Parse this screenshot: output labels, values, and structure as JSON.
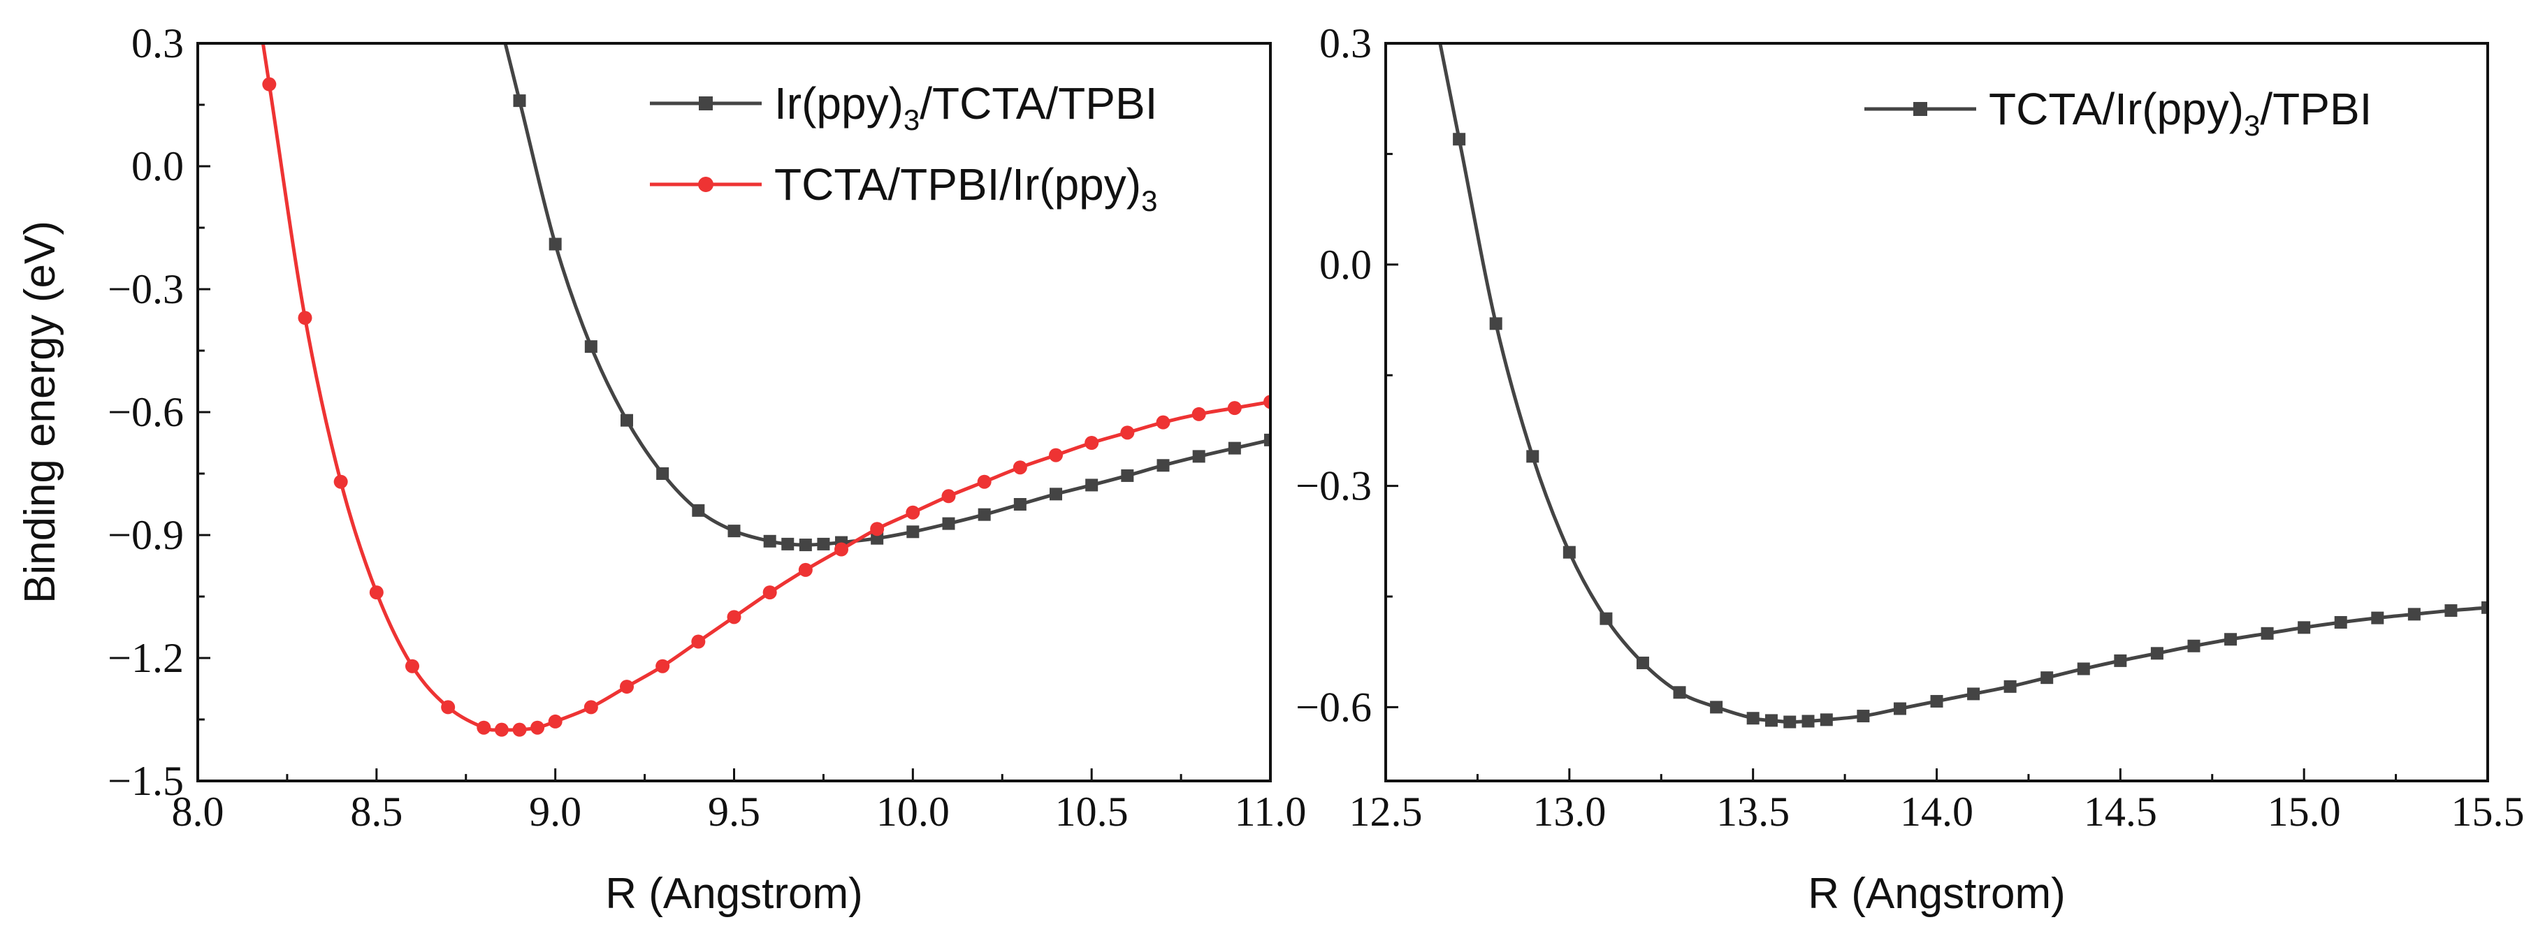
{
  "chart_data": [
    {
      "type": "line",
      "xlabel": "R (Angstrom)",
      "ylabel": "Binding energy (eV)",
      "xlim": [
        8.0,
        11.0
      ],
      "ylim": [
        -1.5,
        0.3
      ],
      "xticks": [
        "8.0",
        "8.5",
        "9.0",
        "9.5",
        "10.0",
        "10.5",
        "11.0"
      ],
      "yticks": [
        "0.3",
        "0.0",
        "−0.3",
        "−0.6",
        "−0.9",
        "−1.2",
        "−1.5"
      ],
      "legend_position": "top-right",
      "series": [
        {
          "name": "Ir(ppy)3/TCTA/TPBI",
          "legend": {
            "pre": "Ir(ppy)",
            "sub": "3",
            "post": "/TCTA/TPBI"
          },
          "color": "#444444",
          "marker": "square",
          "x": [
            8.9,
            9.0,
            9.1,
            9.2,
            9.3,
            9.4,
            9.5,
            9.6,
            9.65,
            9.7,
            9.75,
            9.8,
            9.9,
            10.0,
            10.1,
            10.2,
            10.3,
            10.4,
            10.5,
            10.6,
            10.7,
            10.8,
            10.9,
            11.0
          ],
          "y": [
            0.16,
            -0.19,
            -0.44,
            -0.62,
            -0.75,
            -0.84,
            -0.89,
            -0.915,
            -0.922,
            -0.924,
            -0.922,
            -0.918,
            -0.908,
            -0.892,
            -0.872,
            -0.85,
            -0.825,
            -0.8,
            -0.778,
            -0.755,
            -0.73,
            -0.708,
            -0.688,
            -0.668
          ]
        },
        {
          "name": "TCTA/TPBI/Ir(ppy)3",
          "legend": {
            "pre": "TCTA/TPBI/Ir(ppy)",
            "sub": "3",
            "post": ""
          },
          "color": "#ee3333",
          "marker": "circle",
          "x": [
            8.2,
            8.3,
            8.4,
            8.5,
            8.6,
            8.7,
            8.8,
            8.85,
            8.9,
            8.95,
            9.0,
            9.1,
            9.2,
            9.3,
            9.4,
            9.5,
            9.6,
            9.7,
            9.8,
            9.9,
            10.0,
            10.1,
            10.2,
            10.3,
            10.4,
            10.5,
            10.6,
            10.7,
            10.8,
            10.9,
            11.0
          ],
          "y": [
            0.2,
            -0.37,
            -0.77,
            -1.04,
            -1.22,
            -1.32,
            -1.37,
            -1.375,
            -1.375,
            -1.37,
            -1.355,
            -1.32,
            -1.27,
            -1.22,
            -1.16,
            -1.1,
            -1.04,
            -0.985,
            -0.935,
            -0.885,
            -0.845,
            -0.805,
            -0.77,
            -0.735,
            -0.705,
            -0.675,
            -0.65,
            -0.625,
            -0.605,
            -0.59,
            -0.575
          ]
        }
      ]
    },
    {
      "type": "line",
      "xlabel": "R (Angstrom)",
      "ylabel": "",
      "xlim": [
        12.5,
        15.5
      ],
      "ylim": [
        -0.7,
        0.3
      ],
      "xticks": [
        "12.5",
        "13.0",
        "13.5",
        "14.0",
        "14.5",
        "15.0",
        "15.5"
      ],
      "yticks": [
        "0.3",
        "0.0",
        "−0.3",
        "−0.6"
      ],
      "legend_position": "top-right",
      "series": [
        {
          "name": "TCTA/Ir(ppy)3/TPBI",
          "legend": {
            "pre": "TCTA/Ir(ppy)",
            "sub": "3",
            "post": "/TPBI"
          },
          "color": "#444444",
          "marker": "square",
          "x": [
            12.7,
            12.8,
            12.9,
            13.0,
            13.1,
            13.2,
            13.3,
            13.4,
            13.5,
            13.55,
            13.6,
            13.65,
            13.7,
            13.8,
            13.9,
            14.0,
            14.1,
            14.2,
            14.3,
            14.4,
            14.5,
            14.6,
            14.7,
            14.8,
            14.9,
            15.0,
            15.1,
            15.2,
            15.3,
            15.4,
            15.5
          ],
          "y": [
            0.17,
            -0.08,
            -0.26,
            -0.39,
            -0.48,
            -0.54,
            -0.58,
            -0.6,
            -0.615,
            -0.618,
            -0.62,
            -0.619,
            -0.617,
            -0.612,
            -0.602,
            -0.592,
            -0.582,
            -0.572,
            -0.56,
            -0.548,
            -0.537,
            -0.527,
            -0.517,
            -0.508,
            -0.5,
            -0.492,
            -0.485,
            -0.479,
            -0.474,
            -0.469,
            -0.465
          ]
        }
      ]
    }
  ]
}
